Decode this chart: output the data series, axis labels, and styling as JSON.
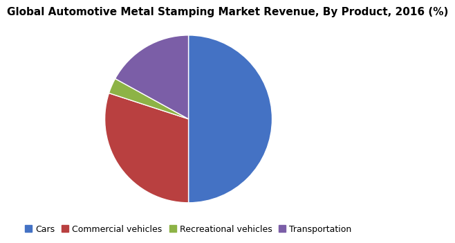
{
  "title": "Global Automotive Metal Stamping Market Revenue, By Product, 2016 (%)",
  "labels": [
    "Cars",
    "Commercial vehicles",
    "Recreational vehicles",
    "Transportation"
  ],
  "values": [
    50,
    30,
    3,
    17
  ],
  "colors": [
    "#4472c4",
    "#b94040",
    "#8db346",
    "#7b5ea7"
  ],
  "startangle": 90,
  "title_fontsize": 11,
  "legend_fontsize": 9,
  "background_color": "#ffffff"
}
